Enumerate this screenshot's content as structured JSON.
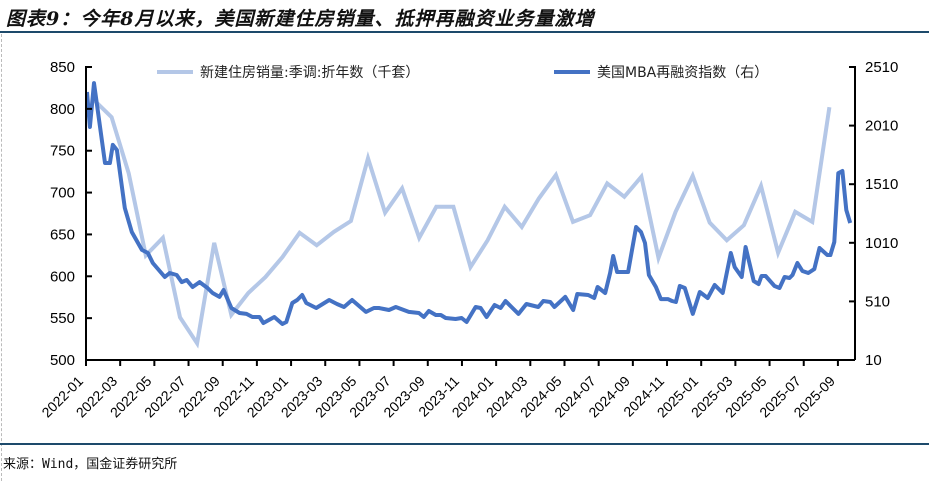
{
  "title": "图表9：今年8月以来，美国新建住房销量、抵押再融资业务量激增",
  "source": "来源：Wind，国金证券研究所",
  "chart_data": {
    "type": "line",
    "title": "图表9：今年8月以来，美国新建住房销量、抵押再融资业务量激增",
    "x_unit": "months since 2022-01",
    "xlim": [
      0,
      45
    ],
    "x_tick_positions": [
      0,
      2,
      4,
      6,
      8,
      10,
      12,
      14,
      16,
      18,
      20,
      22,
      24,
      26,
      28,
      30,
      32,
      34,
      36,
      38,
      40,
      42,
      44
    ],
    "x_tick_labels": [
      "2022-01",
      "2022-03",
      "2022-05",
      "2022-07",
      "2022-09",
      "2022-11",
      "2023-01",
      "2023-03",
      "2023-05",
      "2023-07",
      "2023-09",
      "2023-11",
      "2024-01",
      "2024-03",
      "2024-05",
      "2024-07",
      "2024-09",
      "2024-11",
      "2025-01",
      "2025-03",
      "2025-05",
      "2025-07",
      "2025-09"
    ],
    "left_axis": {
      "ylim": [
        500,
        850
      ],
      "ticks": [
        "500",
        "550",
        "600",
        "650",
        "700",
        "750",
        "800",
        "850"
      ]
    },
    "right_axis": {
      "ylim": [
        10,
        2510
      ],
      "ticks": [
        "10",
        "510",
        "1010",
        "1510",
        "2010",
        "2510"
      ]
    },
    "grid": false,
    "legend_position": "top",
    "series": [
      {
        "name": "新建住房销量:季调:折年数（千套）",
        "axis": "left",
        "color": "#b4c7e7",
        "frequency": "monthly",
        "start": "2022-01",
        "values": [
          810,
          790,
          723,
          625,
          646,
          551,
          520,
          640,
          554,
          580,
          599,
          623,
          652,
          637,
          653,
          666,
          741,
          676,
          705,
          646,
          683,
          683,
          611,
          643,
          683,
          659,
          693,
          721,
          665,
          673,
          711,
          695,
          719,
          622,
          677,
          720,
          664,
          643,
          661,
          708,
          628,
          677,
          665,
          802
        ]
      },
      {
        "name": "美国MBA再融资指数（右）",
        "axis": "right",
        "color": "#4472c4",
        "frequency": "weekly",
        "points": [
          [
            0.06,
            2297
          ],
          [
            0.23,
            1998
          ],
          [
            0.47,
            2373
          ],
          [
            1.11,
            1691
          ],
          [
            1.4,
            1691
          ],
          [
            1.57,
            1845
          ],
          [
            1.81,
            1802
          ],
          [
            2.27,
            1307
          ],
          [
            2.68,
            1102
          ],
          [
            3.27,
            949
          ],
          [
            3.62,
            923
          ],
          [
            3.91,
            838
          ],
          [
            4.61,
            718
          ],
          [
            4.9,
            752
          ],
          [
            5.31,
            735
          ],
          [
            5.6,
            675
          ],
          [
            5.89,
            693
          ],
          [
            6.24,
            633
          ],
          [
            6.65,
            675
          ],
          [
            7.11,
            624
          ],
          [
            7.41,
            582
          ],
          [
            7.81,
            548
          ],
          [
            8.05,
            607
          ],
          [
            8.51,
            454
          ],
          [
            8.98,
            411
          ],
          [
            9.39,
            403
          ],
          [
            9.74,
            377
          ],
          [
            10.15,
            377
          ],
          [
            10.38,
            326
          ],
          [
            11.02,
            377
          ],
          [
            11.49,
            317
          ],
          [
            11.72,
            334
          ],
          [
            12.07,
            496
          ],
          [
            12.36,
            522
          ],
          [
            12.65,
            565
          ],
          [
            12.89,
            496
          ],
          [
            13.47,
            454
          ],
          [
            14.23,
            522
          ],
          [
            14.69,
            488
          ],
          [
            15.1,
            462
          ],
          [
            15.57,
            522
          ],
          [
            16.38,
            420
          ],
          [
            16.85,
            454
          ],
          [
            17.14,
            454
          ],
          [
            17.73,
            437
          ],
          [
            18.13,
            462
          ],
          [
            18.89,
            420
          ],
          [
            19.48,
            411
          ],
          [
            19.77,
            377
          ],
          [
            20.06,
            428
          ],
          [
            20.47,
            394
          ],
          [
            20.76,
            394
          ],
          [
            21.05,
            368
          ],
          [
            21.63,
            360
          ],
          [
            21.98,
            368
          ],
          [
            22.27,
            334
          ],
          [
            22.8,
            462
          ],
          [
            23.09,
            454
          ],
          [
            23.44,
            377
          ],
          [
            23.91,
            479
          ],
          [
            24.26,
            454
          ],
          [
            24.55,
            513
          ],
          [
            24.9,
            462
          ],
          [
            25.31,
            403
          ],
          [
            25.77,
            488
          ],
          [
            26.47,
            462
          ],
          [
            26.76,
            513
          ],
          [
            27.17,
            505
          ],
          [
            27.41,
            462
          ],
          [
            28.05,
            548
          ],
          [
            28.51,
            437
          ],
          [
            28.75,
            573
          ],
          [
            29.39,
            565
          ],
          [
            29.74,
            539
          ],
          [
            29.94,
            633
          ],
          [
            30.38,
            582
          ],
          [
            30.67,
            752
          ],
          [
            30.85,
            897
          ],
          [
            31.08,
            761
          ],
          [
            31.72,
            761
          ],
          [
            32.19,
            1145
          ],
          [
            32.48,
            1102
          ],
          [
            32.71,
            1008
          ],
          [
            32.94,
            735
          ],
          [
            33.35,
            633
          ],
          [
            33.64,
            530
          ],
          [
            34.05,
            530
          ],
          [
            34.29,
            513
          ],
          [
            34.52,
            505
          ],
          [
            34.75,
            641
          ],
          [
            35.04,
            624
          ],
          [
            35.51,
            403
          ],
          [
            35.92,
            590
          ],
          [
            36.38,
            539
          ],
          [
            36.79,
            650
          ],
          [
            37.26,
            582
          ],
          [
            37.73,
            923
          ],
          [
            37.96,
            803
          ],
          [
            38.37,
            718
          ],
          [
            38.6,
            974
          ],
          [
            39.07,
            684
          ],
          [
            39.36,
            658
          ],
          [
            39.53,
            727
          ],
          [
            39.77,
            727
          ],
          [
            40.29,
            641
          ],
          [
            40.58,
            624
          ],
          [
            40.88,
            718
          ],
          [
            41.17,
            710
          ],
          [
            41.34,
            735
          ],
          [
            41.63,
            838
          ],
          [
            41.92,
            769
          ],
          [
            42.27,
            752
          ],
          [
            42.62,
            786
          ],
          [
            42.92,
            966
          ],
          [
            43.38,
            906
          ],
          [
            43.56,
            906
          ],
          [
            43.79,
            1017
          ],
          [
            44.02,
            1605
          ],
          [
            44.26,
            1623
          ],
          [
            44.49,
            1290
          ],
          [
            44.72,
            1179
          ]
        ]
      }
    ]
  }
}
